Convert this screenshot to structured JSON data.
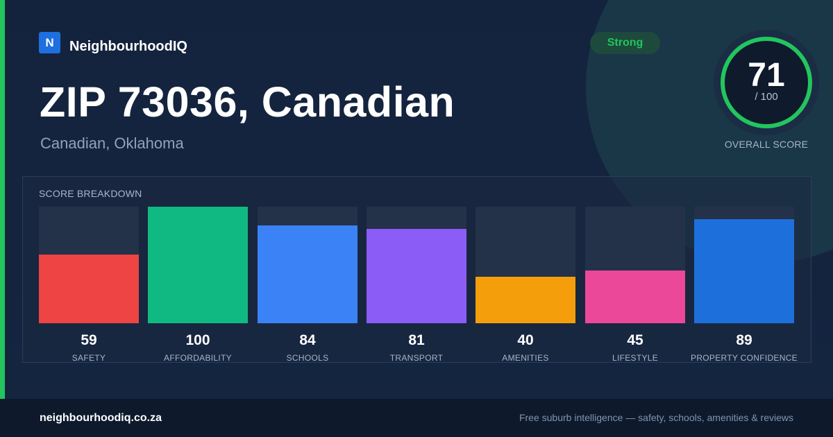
{
  "brand": {
    "logo_letter": "N",
    "name": "NeighbourhoodIQ",
    "accent_color": "#22c55e"
  },
  "rating_badge": "Strong",
  "location": {
    "title": "ZIP 73036, Canadian",
    "subtitle": "Canadian, Oklahoma"
  },
  "overall": {
    "score": 71,
    "score_text": "71",
    "max_text": "/ 100",
    "label": "OVERALL SCORE",
    "ring_color": "#22c55e"
  },
  "breakdown": {
    "title": "SCORE BREAKDOWN",
    "max": 100,
    "items": [
      {
        "label": "SAFETY",
        "value": 59,
        "value_text": "59",
        "color": "#ef4444"
      },
      {
        "label": "AFFORDABILITY",
        "value": 100,
        "value_text": "100",
        "color": "#10b981"
      },
      {
        "label": "SCHOOLS",
        "value": 84,
        "value_text": "84",
        "color": "#3b82f6"
      },
      {
        "label": "TRANSPORT",
        "value": 81,
        "value_text": "81",
        "color": "#8b5cf6"
      },
      {
        "label": "AMENITIES",
        "value": 40,
        "value_text": "40",
        "color": "#f59e0b"
      },
      {
        "label": "LIFESTYLE",
        "value": 45,
        "value_text": "45",
        "color": "#ec4899"
      },
      {
        "label": "PROPERTY CONFIDENCE",
        "value": 89,
        "value_text": "89",
        "color": "#1d6fdc"
      }
    ]
  },
  "footer": {
    "url": "neighbourhoodiq.co.za",
    "tagline": "Free suburb intelligence — safety, schools, amenities & reviews"
  }
}
